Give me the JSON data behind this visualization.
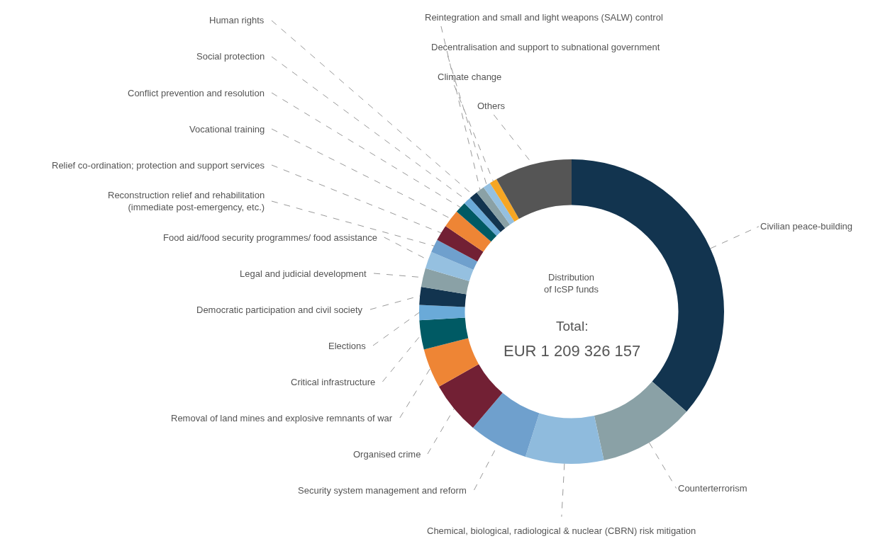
{
  "chart_data": {
    "type": "donut",
    "categories": [
      "Civilian peace-building",
      "Counterterrorism",
      "Chemical, biological, radiological & nuclear (CBRN) risk mitigation",
      "Security system management and reform",
      "Organised crime",
      "Removal of land mines and explosive remnants of war",
      "Critical infrastructure",
      "Elections",
      "Democratic participation and civil society",
      "Legal and judicial development",
      "Food aid/food security programmes/ food assistance",
      "Reconstruction relief and rehabilitation (immediate post-emergency, etc.)",
      "Relief co-ordination; protection and support services",
      "Vocational training",
      "Conflict prevention and resolution",
      "Social protection",
      "Human rights",
      "Reintegration and small and light weapons (SALW) control",
      "Decentralisation and support to subnational government",
      "Climate change",
      "Others"
    ],
    "values": [
      36.4,
      10.2,
      8.3,
      6.3,
      5.6,
      4.2,
      3.1,
      1.6,
      1.9,
      2.0,
      1.8,
      1.4,
      1.7,
      1.9,
      1.2,
      0.8,
      0.9,
      0.9,
      0.8,
      0.8,
      8.2
    ],
    "colors": [
      "#12344f",
      "#8aa1a6",
      "#8fbbdd",
      "#6fa0cd",
      "#722034",
      "#ee8535",
      "#005a64",
      "#6aaad8",
      "#12344f",
      "#8aa1a6",
      "#95c0e0",
      "#6fa0cd",
      "#722034",
      "#ee8535",
      "#005a64",
      "#6aaad8",
      "#12344f",
      "#8aa1a6",
      "#95c0e0",
      "#f6a623",
      "#555555"
    ],
    "annotations": [
      "Distribution of IcSP funds",
      "Total:",
      "EUR 1 209 326 157"
    ]
  }
}
